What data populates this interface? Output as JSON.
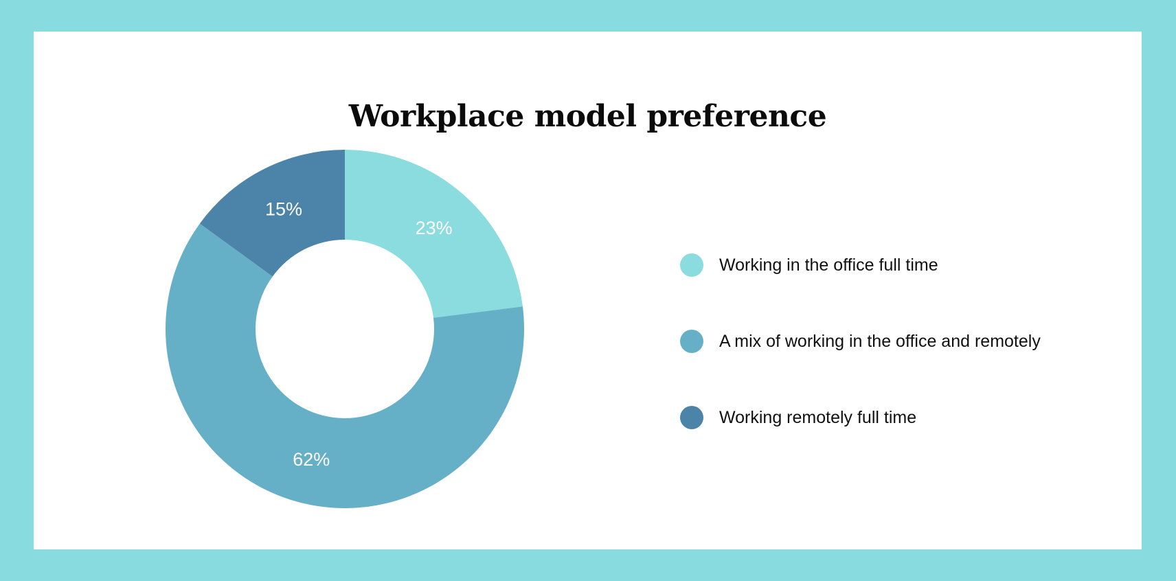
{
  "colors": {
    "background": "#88dcdf",
    "panel": "#ffffff"
  },
  "chart_data": {
    "type": "pie",
    "variant": "donut",
    "title": "Workplace model preference",
    "legend_position": "right",
    "categories": [
      "Working in the office full time",
      "A mix of working in the office and remotely",
      "Working remotely full time"
    ],
    "values": [
      23,
      62,
      15
    ],
    "value_labels": [
      "23%",
      "62%",
      "15%"
    ],
    "colors": [
      "#8adcdf",
      "#65b0c7",
      "#4b83a9"
    ],
    "unit": "%"
  }
}
